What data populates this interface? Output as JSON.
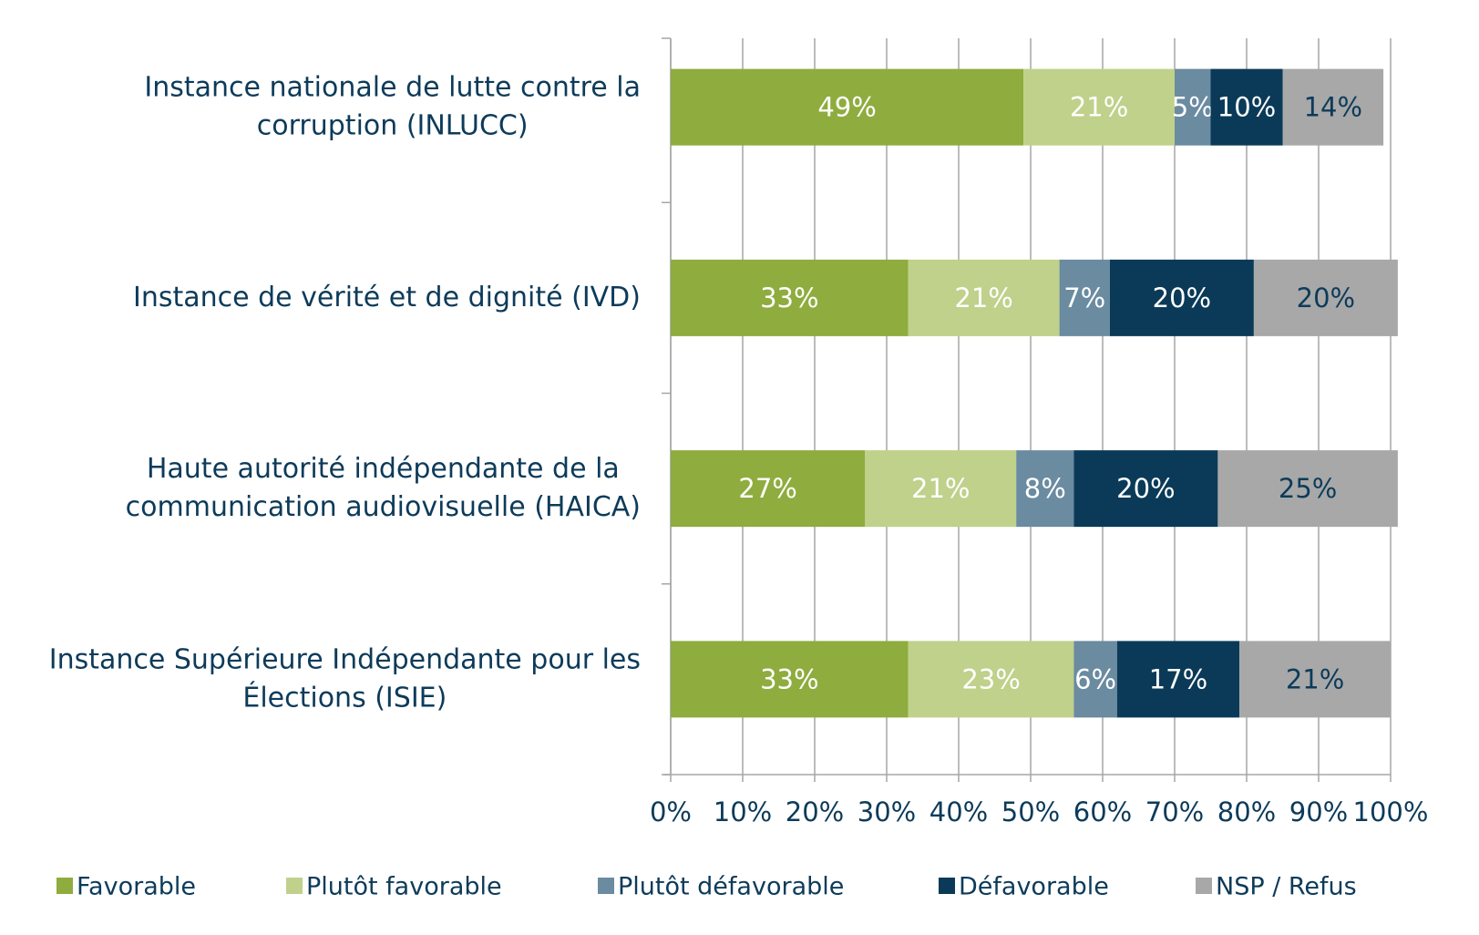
{
  "chart_data": {
    "type": "stacked-barh",
    "categories": [
      "Instance nationale de lutte contre la corruption (INLUCC)",
      "Instance de vérité et de dignité (IVD)",
      "Haute autorité indépendante de la communication audiovisuelle  (HAICA)",
      "Instance Supérieure Indépendante pour les Élections (ISIE)"
    ],
    "series": [
      {
        "name": "Favorable",
        "color": "#8fac3e",
        "values": [
          49,
          33,
          27,
          33
        ],
        "value_labels": [
          "49%",
          "33%",
          "27%",
          "33%"
        ]
      },
      {
        "name": "Plutôt favorable",
        "color": "#bfd18a",
        "values": [
          21,
          21,
          21,
          23
        ],
        "value_labels": [
          "21%",
          "21%",
          "21%",
          "23%"
        ]
      },
      {
        "name": "Plutôt défavorable",
        "color": "#6a8ba0",
        "values": [
          5,
          7,
          8,
          6
        ],
        "value_labels": [
          "5%",
          "7%",
          "8%",
          "6%"
        ]
      },
      {
        "name": "Défavorable",
        "color": "#0b3a58",
        "values": [
          10,
          20,
          20,
          17
        ],
        "value_labels": [
          "10%",
          "20%",
          "20%",
          "17%"
        ]
      },
      {
        "name": "NSP / Refus",
        "color": "#a8a8a8",
        "values": [
          14,
          20,
          25,
          21
        ],
        "value_labels": [
          "14%",
          "20%",
          "25%",
          "21%"
        ]
      }
    ],
    "xlim": [
      0,
      100
    ],
    "xticks": [
      {
        "value": 0,
        "label": "0%"
      },
      {
        "value": 10,
        "label": "10%"
      },
      {
        "value": 20,
        "label": "20%"
      },
      {
        "value": 30,
        "label": "30%"
      },
      {
        "value": 40,
        "label": "40%"
      },
      {
        "value": 50,
        "label": "50%"
      },
      {
        "value": 60,
        "label": "60%"
      },
      {
        "value": 70,
        "label": "70%"
      },
      {
        "value": 80,
        "label": "80%"
      },
      {
        "value": 90,
        "label": "90%"
      },
      {
        "value": 100,
        "label": "100%"
      }
    ],
    "grid": true,
    "legend": "bottom"
  }
}
